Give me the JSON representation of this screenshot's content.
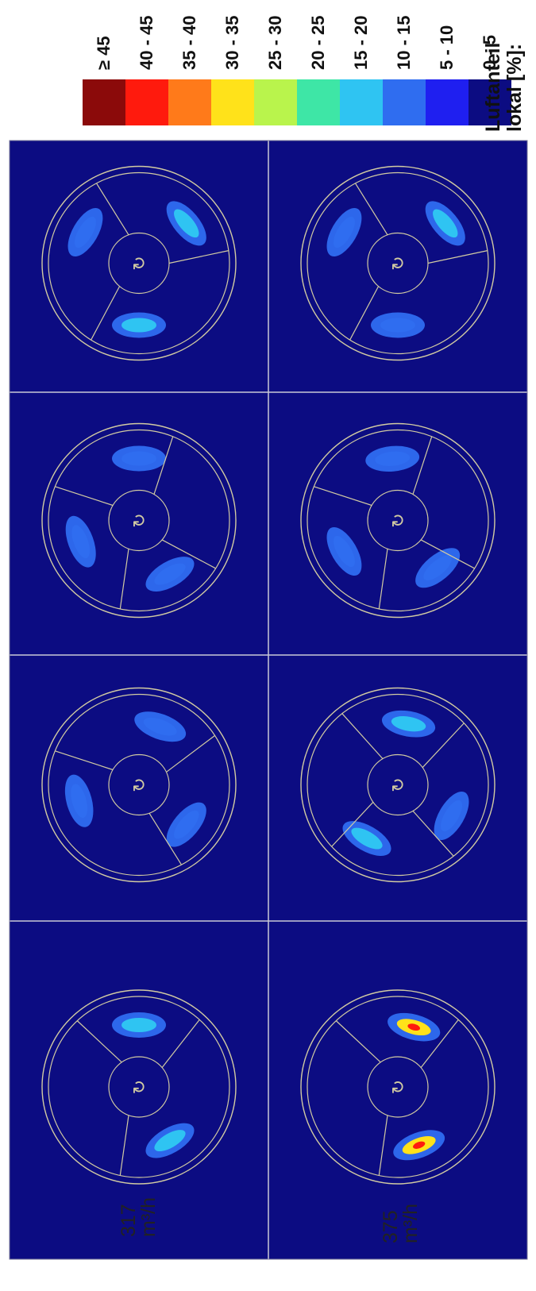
{
  "row_labels": [
    {
      "value": "317",
      "unit": "m³/h"
    },
    {
      "value": "375",
      "unit": "m³/h"
    }
  ],
  "legend": {
    "title_line1": "Luftanteil",
    "title_line2": "lokal [%]:",
    "classes": [
      {
        "label": "≥ 45",
        "color": "#8b0a0a"
      },
      {
        "label": "40 - 45",
        "color": "#ff1a0d"
      },
      {
        "label": "35 - 40",
        "color": "#ff7a1a"
      },
      {
        "label": "30 - 35",
        "color": "#ffe21a"
      },
      {
        "label": "25 - 30",
        "color": "#b9f44c"
      },
      {
        "label": "20 - 25",
        "color": "#3ee6a6"
      },
      {
        "label": "15 - 20",
        "color": "#2fc4f2"
      },
      {
        "label": "10 - 15",
        "color": "#2f6df0"
      },
      {
        "label": "5 - 10",
        "color": "#1f1ff0"
      },
      {
        "label": "0 - 5",
        "color": "#0c0c82"
      }
    ]
  },
  "colors": {
    "panel_background": "#0c0c82",
    "panel_separator": "#c9c9d6",
    "impeller_line": "#d2cba2"
  },
  "panels": [
    {
      "row": 1,
      "col": 1,
      "hub_symbol": "↻",
      "blade_count": 3,
      "blade_angles_deg": [
        0,
        110,
        230
      ],
      "blobs": [
        {
          "angle_deg": 40,
          "class": "15 - 20"
        },
        {
          "angle_deg": 150,
          "class": "10 - 15"
        },
        {
          "angle_deg": 270,
          "class": "15 - 20"
        }
      ]
    },
    {
      "row": 1,
      "col": 2,
      "hub_symbol": "↻",
      "blade_count": 4,
      "blade_angles_deg": [
        60,
        150,
        250,
        320
      ],
      "blobs": [
        {
          "angle_deg": 90,
          "class": "10 - 15"
        },
        {
          "angle_deg": 200,
          "class": "10 - 15"
        },
        {
          "angle_deg": 300,
          "class": "10 - 15"
        }
      ]
    },
    {
      "row": 1,
      "col": 3,
      "hub_symbol": "↻",
      "blade_count": 3,
      "blade_angles_deg": [
        25,
        150,
        290
      ],
      "blobs": [
        {
          "angle_deg": 70,
          "class": "10 - 15"
        },
        {
          "angle_deg": 195,
          "class": "10 - 15"
        },
        {
          "angle_deg": 320,
          "class": "10 - 15"
        }
      ]
    },
    {
      "row": 1,
      "col": 4,
      "hub_symbol": "↻",
      "blade_count": 3,
      "blade_angles_deg": [
        40,
        125,
        250
      ],
      "blobs": [
        {
          "angle_deg": 90,
          "class": "15 - 20"
        },
        {
          "angle_deg": 300,
          "class": "15 - 20"
        }
      ]
    },
    {
      "row": 2,
      "col": 1,
      "hub_symbol": "↻",
      "blade_count": 3,
      "blade_angles_deg": [
        0,
        110,
        230
      ],
      "blobs": [
        {
          "angle_deg": 40,
          "class": "15 - 20"
        },
        {
          "angle_deg": 150,
          "class": "10 - 15"
        },
        {
          "angle_deg": 270,
          "class": "10 - 15"
        }
      ]
    },
    {
      "row": 2,
      "col": 2,
      "hub_symbol": "↻",
      "blade_count": 4,
      "blade_angles_deg": [
        60,
        150,
        250,
        320
      ],
      "blobs": [
        {
          "angle_deg": 95,
          "class": "10 - 15"
        },
        {
          "angle_deg": 210,
          "class": "10 - 15"
        },
        {
          "angle_deg": 310,
          "class": "10 - 15"
        }
      ]
    },
    {
      "row": 2,
      "col": 3,
      "hub_symbol": "↻",
      "blade_count": 4,
      "blade_angles_deg": [
        35,
        120,
        215,
        300
      ],
      "blobs": [
        {
          "angle_deg": 80,
          "class": "15 - 20"
        },
        {
          "angle_deg": 240,
          "class": "15 - 20"
        },
        {
          "angle_deg": 330,
          "class": "10 - 15"
        }
      ]
    },
    {
      "row": 2,
      "col": 4,
      "hub_symbol": "↻",
      "blade_count": 3,
      "blade_angles_deg": [
        40,
        125,
        250
      ],
      "blobs": [
        {
          "angle_deg": 75,
          "class": "30 - 35"
        },
        {
          "angle_deg": 290,
          "class": "30 - 35"
        }
      ]
    }
  ]
}
